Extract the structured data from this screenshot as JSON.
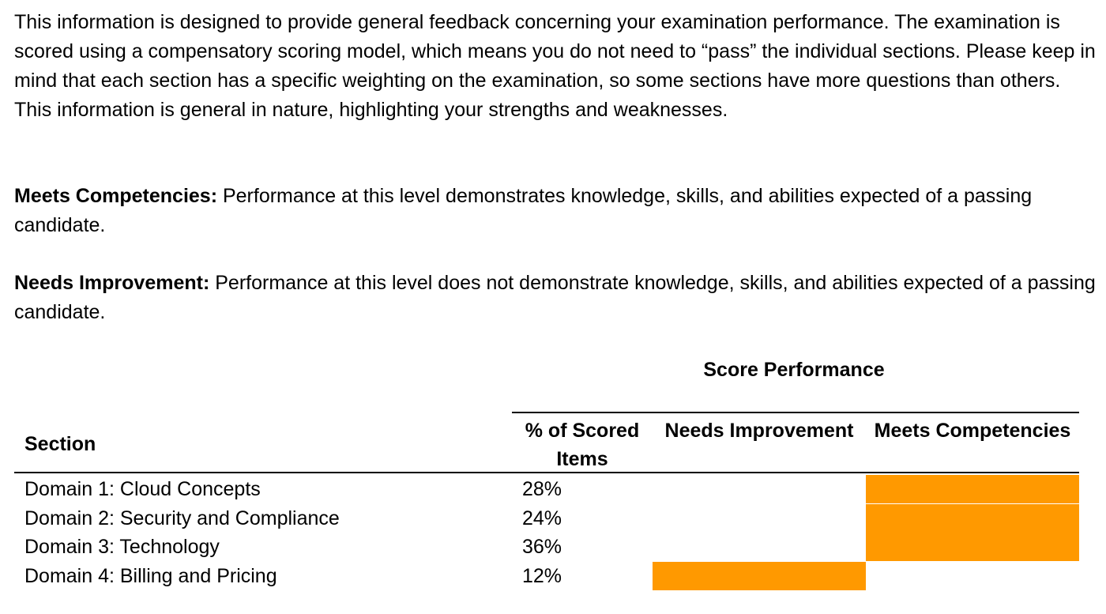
{
  "intro_text": "This information is designed to provide general feedback concerning your examination performance. The examination is scored using a compensatory scoring model, which means you do not need to “pass” the individual sections. Please keep in mind that each section has a specific weighting on the examination, so some sections have more questions than others. This information is general in nature, highlighting your strengths and weaknesses.",
  "definitions": {
    "meets": {
      "term": "Meets Competencies:",
      "text": " Performance at this level demonstrates knowledge, skills, and abilities expected of a passing candidate."
    },
    "needs": {
      "term": "Needs Improvement:",
      "text": " Performance at this level does not demonstrate knowledge, skills, and abilities expected of a passing candidate."
    }
  },
  "table": {
    "group_heading": "Score Performance",
    "headers": {
      "section": "Section",
      "pct": "% of Scored Items",
      "needs": "Needs Improvement",
      "meets": "Meets Competencies"
    },
    "highlight_color": "#ff9900",
    "rows": [
      {
        "name": "Domain 1: Cloud Concepts",
        "pct": "28%",
        "result": "meets"
      },
      {
        "name": "Domain 2: Security and Compliance",
        "pct": "24%",
        "result": "meets"
      },
      {
        "name": "Domain 3: Technology",
        "pct": "36%",
        "result": "meets"
      },
      {
        "name": "Domain 4: Billing and Pricing",
        "pct": "12%",
        "result": "needs"
      }
    ]
  }
}
